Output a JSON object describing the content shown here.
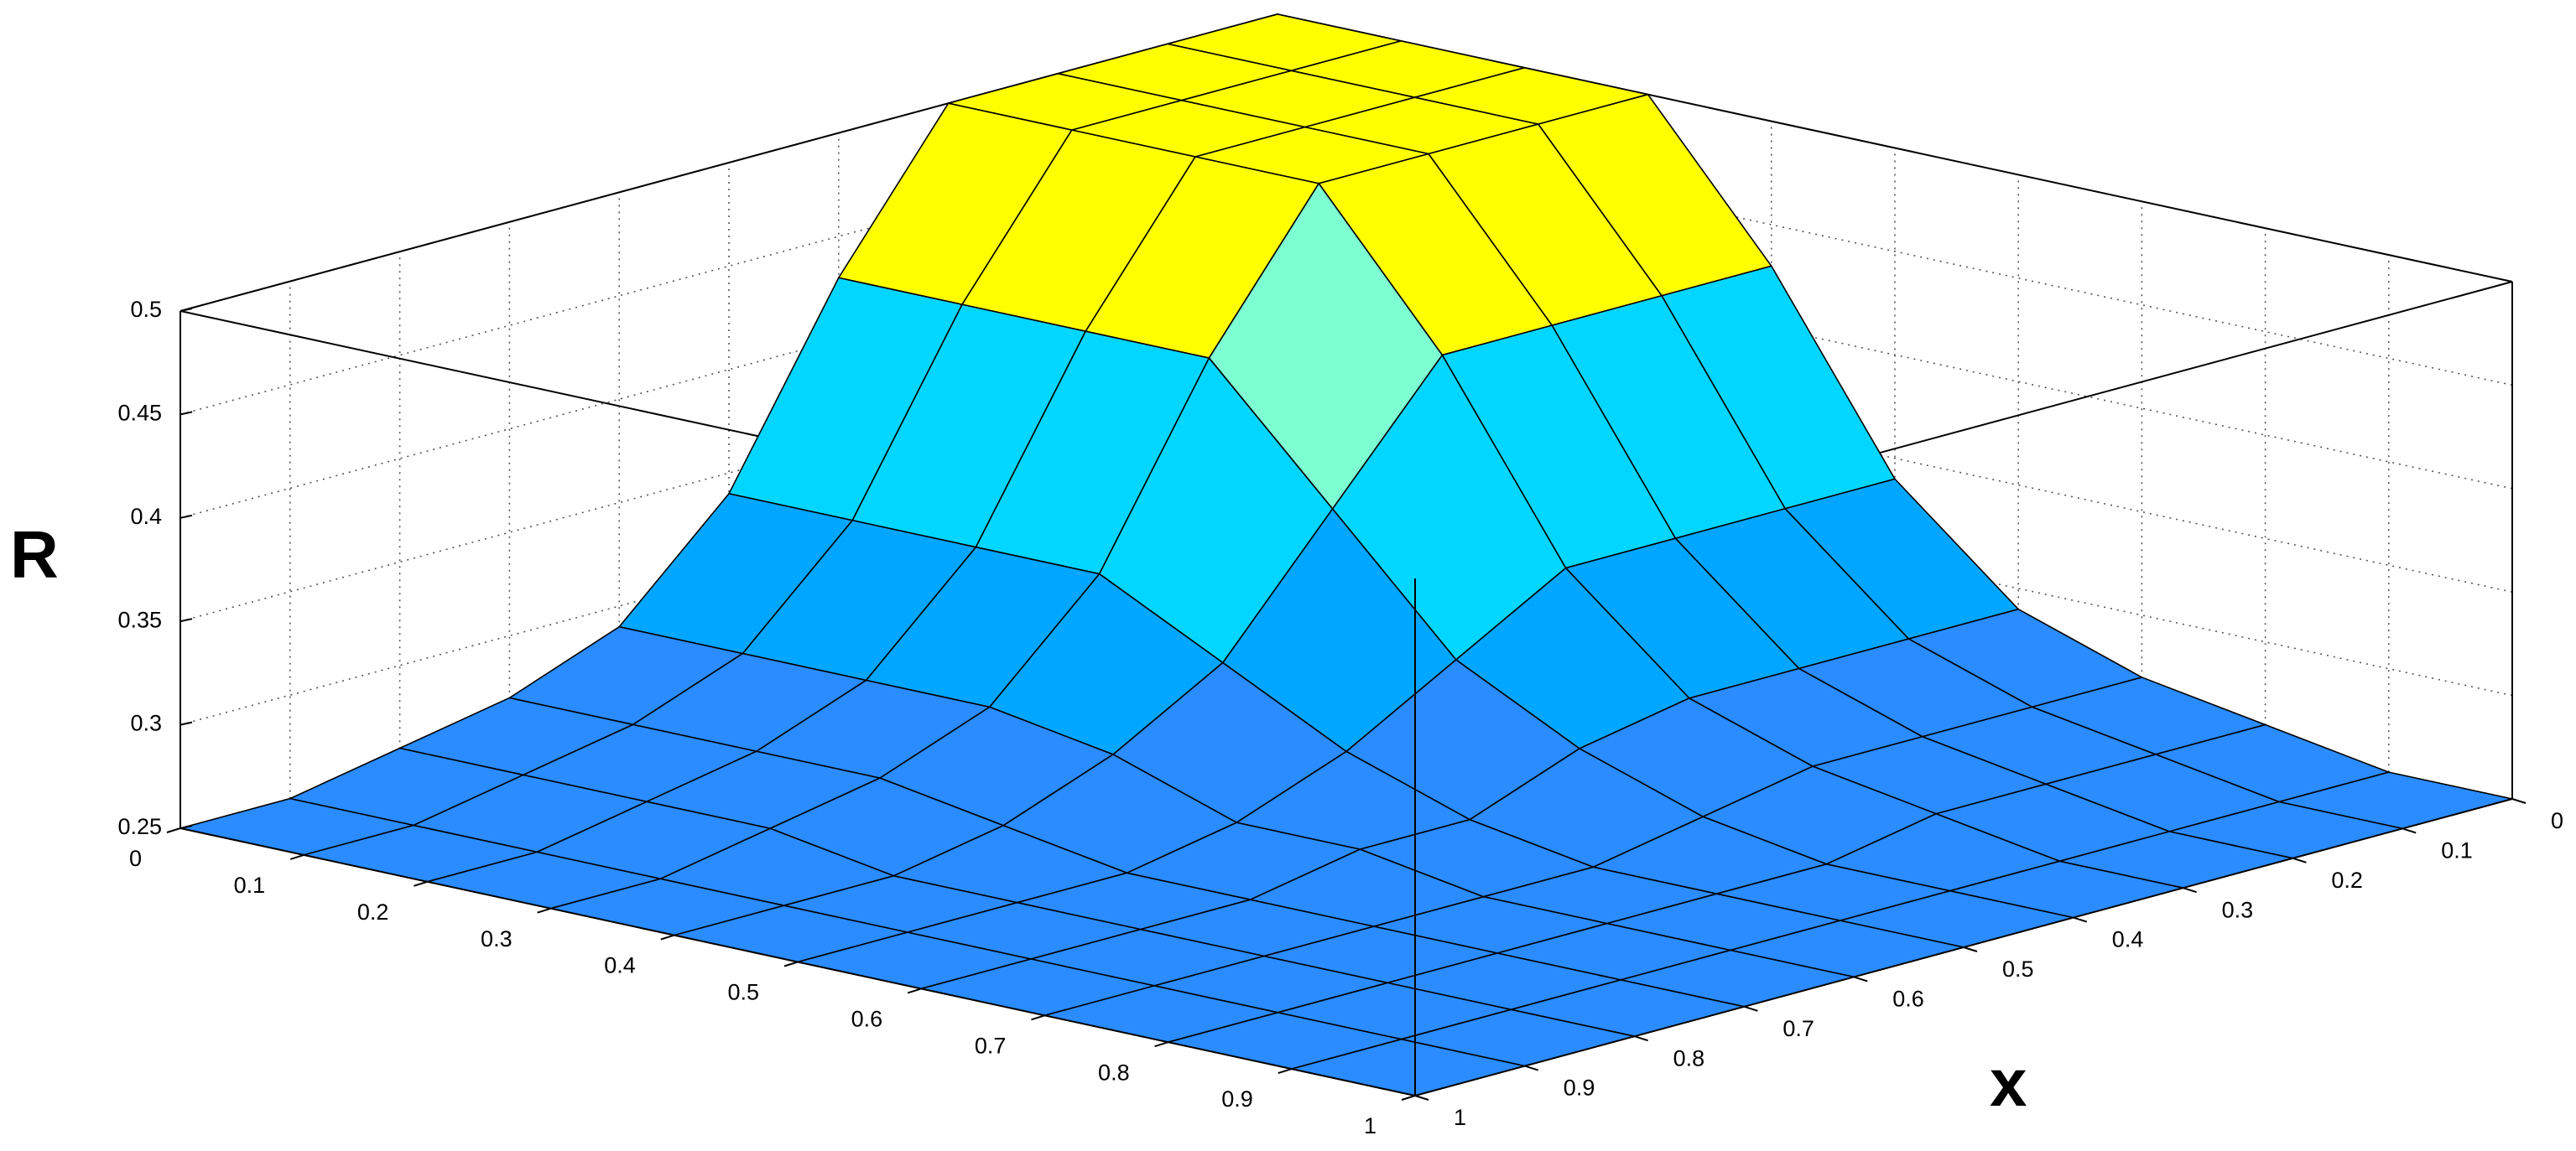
{
  "chart_data": {
    "type": "surface",
    "zlabel": "R",
    "xlabel": "x",
    "x": [
      0,
      0.1,
      0.2,
      0.3,
      0.4,
      0.5,
      0.6,
      0.7,
      0.8,
      0.9,
      1
    ],
    "y": [
      0,
      0.1,
      0.2,
      0.3,
      0.4,
      0.5,
      0.6,
      0.7,
      0.8,
      0.9,
      1
    ],
    "z": [
      [
        0.5,
        0.5,
        0.5,
        0.5,
        0.43,
        0.34,
        0.29,
        0.27,
        0.26,
        0.25,
        0.25
      ],
      [
        0.5,
        0.5,
        0.5,
        0.5,
        0.43,
        0.34,
        0.29,
        0.27,
        0.26,
        0.25,
        0.25
      ],
      [
        0.5,
        0.5,
        0.5,
        0.5,
        0.43,
        0.34,
        0.29,
        0.27,
        0.26,
        0.25,
        0.25
      ],
      [
        0.5,
        0.5,
        0.5,
        0.5,
        0.43,
        0.34,
        0.29,
        0.27,
        0.26,
        0.25,
        0.25
      ],
      [
        0.43,
        0.43,
        0.43,
        0.43,
        0.37,
        0.31,
        0.28,
        0.26,
        0.25,
        0.25,
        0.25
      ],
      [
        0.34,
        0.34,
        0.34,
        0.34,
        0.31,
        0.28,
        0.26,
        0.25,
        0.25,
        0.25,
        0.25
      ],
      [
        0.29,
        0.29,
        0.29,
        0.29,
        0.28,
        0.26,
        0.26,
        0.25,
        0.25,
        0.25,
        0.25
      ],
      [
        0.27,
        0.27,
        0.27,
        0.27,
        0.26,
        0.25,
        0.25,
        0.25,
        0.25,
        0.25,
        0.25
      ],
      [
        0.26,
        0.26,
        0.26,
        0.26,
        0.25,
        0.25,
        0.25,
        0.25,
        0.25,
        0.25,
        0.25
      ],
      [
        0.25,
        0.25,
        0.25,
        0.25,
        0.25,
        0.25,
        0.25,
        0.25,
        0.25,
        0.25,
        0.25
      ],
      [
        0.25,
        0.25,
        0.25,
        0.25,
        0.25,
        0.25,
        0.25,
        0.25,
        0.25,
        0.25,
        0.25
      ]
    ],
    "xlim": [
      0,
      1
    ],
    "ylim": [
      0,
      1
    ],
    "zlim": [
      0.25,
      0.5
    ],
    "xticks": [
      0,
      0.1,
      0.2,
      0.3,
      0.4,
      0.5,
      0.6,
      0.7,
      0.8,
      0.9,
      1
    ],
    "yticks": [
      0,
      0.1,
      0.2,
      0.3,
      0.4,
      0.5,
      0.6,
      0.7,
      0.8,
      0.9,
      1
    ],
    "zticks": [
      0.25,
      0.3,
      0.35,
      0.4,
      0.45,
      0.5
    ],
    "grid": true,
    "colormap": [
      "#2a8cff",
      "#00a6ff",
      "#00d6ff",
      "#7dffd2",
      "#ffff00"
    ]
  }
}
